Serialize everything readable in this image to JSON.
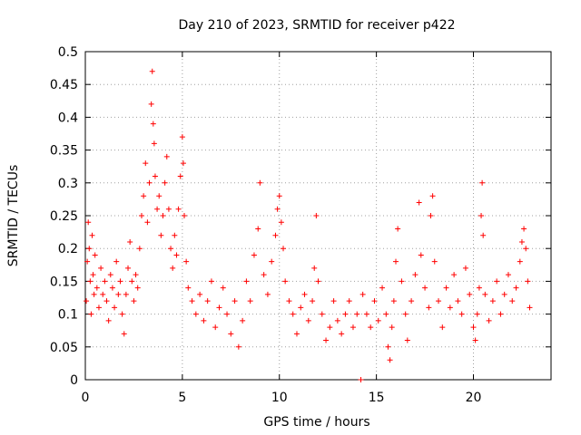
{
  "chart_data": {
    "type": "scatter",
    "title": "Day 210 of 2023, SRMTID for receiver p422",
    "xlabel": "GPS time / hours",
    "ylabel": "SRMTID / TECUs",
    "xlim": [
      0,
      24
    ],
    "ylim": [
      0,
      0.5
    ],
    "xticks": [
      0,
      5,
      10,
      15,
      20
    ],
    "xtick_labels": [
      "0",
      "5",
      "10",
      "15",
      "20"
    ],
    "yticks": [
      0,
      0.05,
      0.1,
      0.15,
      0.2,
      0.25,
      0.3,
      0.35,
      0.4,
      0.45,
      0.5
    ],
    "ytick_labels": [
      "0",
      "0.05",
      "0.1",
      "0.15",
      "0.2",
      "0.25",
      "0.3",
      "0.35",
      "0.4",
      "0.45",
      "0.5"
    ],
    "grid": true,
    "marker": "+",
    "colors": {
      "series": "#ff0000",
      "grid": "#a0a0a0",
      "axis": "#000000"
    },
    "series": [
      {
        "name": "SRMTID",
        "points": [
          [
            0.05,
            0.12
          ],
          [
            0.1,
            0.18
          ],
          [
            0.15,
            0.24
          ],
          [
            0.2,
            0.2
          ],
          [
            0.25,
            0.15
          ],
          [
            0.3,
            0.1
          ],
          [
            0.35,
            0.22
          ],
          [
            0.4,
            0.16
          ],
          [
            0.45,
            0.13
          ],
          [
            0.5,
            0.19
          ],
          [
            0.6,
            0.14
          ],
          [
            0.7,
            0.11
          ],
          [
            0.8,
            0.17
          ],
          [
            0.9,
            0.13
          ],
          [
            1.0,
            0.15
          ],
          [
            1.1,
            0.12
          ],
          [
            1.2,
            0.09
          ],
          [
            1.3,
            0.16
          ],
          [
            1.4,
            0.14
          ],
          [
            1.5,
            0.11
          ],
          [
            1.6,
            0.18
          ],
          [
            1.7,
            0.13
          ],
          [
            1.8,
            0.15
          ],
          [
            1.9,
            0.1
          ],
          [
            2.0,
            0.07
          ],
          [
            2.1,
            0.13
          ],
          [
            2.2,
            0.17
          ],
          [
            2.3,
            0.21
          ],
          [
            2.4,
            0.15
          ],
          [
            2.5,
            0.12
          ],
          [
            2.6,
            0.16
          ],
          [
            2.7,
            0.14
          ],
          [
            2.8,
            0.2
          ],
          [
            2.9,
            0.25
          ],
          [
            3.0,
            0.28
          ],
          [
            3.1,
            0.33
          ],
          [
            3.2,
            0.24
          ],
          [
            3.3,
            0.3
          ],
          [
            3.4,
            0.42
          ],
          [
            3.45,
            0.47
          ],
          [
            3.5,
            0.39
          ],
          [
            3.55,
            0.36
          ],
          [
            3.6,
            0.31
          ],
          [
            3.7,
            0.26
          ],
          [
            3.8,
            0.28
          ],
          [
            3.9,
            0.22
          ],
          [
            4.0,
            0.25
          ],
          [
            4.1,
            0.3
          ],
          [
            4.2,
            0.34
          ],
          [
            4.3,
            0.26
          ],
          [
            4.4,
            0.2
          ],
          [
            4.5,
            0.17
          ],
          [
            4.6,
            0.22
          ],
          [
            4.7,
            0.19
          ],
          [
            4.8,
            0.26
          ],
          [
            4.9,
            0.31
          ],
          [
            5.0,
            0.37
          ],
          [
            5.05,
            0.33
          ],
          [
            5.1,
            0.25
          ],
          [
            5.2,
            0.18
          ],
          [
            5.3,
            0.14
          ],
          [
            5.5,
            0.12
          ],
          [
            5.7,
            0.1
          ],
          [
            5.9,
            0.13
          ],
          [
            6.1,
            0.09
          ],
          [
            6.3,
            0.12
          ],
          [
            6.5,
            0.15
          ],
          [
            6.7,
            0.08
          ],
          [
            6.9,
            0.11
          ],
          [
            7.1,
            0.14
          ],
          [
            7.3,
            0.1
          ],
          [
            7.5,
            0.07
          ],
          [
            7.7,
            0.12
          ],
          [
            7.9,
            0.05
          ],
          [
            8.1,
            0.09
          ],
          [
            8.3,
            0.15
          ],
          [
            8.5,
            0.12
          ],
          [
            8.7,
            0.19
          ],
          [
            8.9,
            0.23
          ],
          [
            9.0,
            0.3
          ],
          [
            9.2,
            0.16
          ],
          [
            9.4,
            0.13
          ],
          [
            9.6,
            0.18
          ],
          [
            9.8,
            0.22
          ],
          [
            9.9,
            0.26
          ],
          [
            10.0,
            0.28
          ],
          [
            10.1,
            0.24
          ],
          [
            10.2,
            0.2
          ],
          [
            10.3,
            0.15
          ],
          [
            10.5,
            0.12
          ],
          [
            10.7,
            0.1
          ],
          [
            10.9,
            0.07
          ],
          [
            11.1,
            0.11
          ],
          [
            11.3,
            0.13
          ],
          [
            11.5,
            0.09
          ],
          [
            11.7,
            0.12
          ],
          [
            11.8,
            0.17
          ],
          [
            11.9,
            0.25
          ],
          [
            12.0,
            0.15
          ],
          [
            12.2,
            0.1
          ],
          [
            12.4,
            0.06
          ],
          [
            12.6,
            0.08
          ],
          [
            12.8,
            0.12
          ],
          [
            13.0,
            0.09
          ],
          [
            13.2,
            0.07
          ],
          [
            13.4,
            0.1
          ],
          [
            13.6,
            0.12
          ],
          [
            13.8,
            0.08
          ],
          [
            14.0,
            0.1
          ],
          [
            14.2,
            0.0
          ],
          [
            14.3,
            0.13
          ],
          [
            14.5,
            0.1
          ],
          [
            14.7,
            0.08
          ],
          [
            14.9,
            0.12
          ],
          [
            15.1,
            0.09
          ],
          [
            15.3,
            0.14
          ],
          [
            15.5,
            0.1
          ],
          [
            15.6,
            0.05
          ],
          [
            15.7,
            0.03
          ],
          [
            15.8,
            0.08
          ],
          [
            15.9,
            0.12
          ],
          [
            16.0,
            0.18
          ],
          [
            16.1,
            0.23
          ],
          [
            16.3,
            0.15
          ],
          [
            16.5,
            0.1
          ],
          [
            16.6,
            0.06
          ],
          [
            16.8,
            0.12
          ],
          [
            17.0,
            0.16
          ],
          [
            17.2,
            0.27
          ],
          [
            17.3,
            0.19
          ],
          [
            17.5,
            0.14
          ],
          [
            17.7,
            0.11
          ],
          [
            17.8,
            0.25
          ],
          [
            17.9,
            0.28
          ],
          [
            18.0,
            0.18
          ],
          [
            18.2,
            0.12
          ],
          [
            18.4,
            0.08
          ],
          [
            18.6,
            0.14
          ],
          [
            18.8,
            0.11
          ],
          [
            19.0,
            0.16
          ],
          [
            19.2,
            0.12
          ],
          [
            19.4,
            0.1
          ],
          [
            19.6,
            0.17
          ],
          [
            19.8,
            0.13
          ],
          [
            20.0,
            0.08
          ],
          [
            20.1,
            0.06
          ],
          [
            20.2,
            0.1
          ],
          [
            20.3,
            0.14
          ],
          [
            20.4,
            0.25
          ],
          [
            20.45,
            0.3
          ],
          [
            20.5,
            0.22
          ],
          [
            20.6,
            0.13
          ],
          [
            20.8,
            0.09
          ],
          [
            21.0,
            0.12
          ],
          [
            21.2,
            0.15
          ],
          [
            21.4,
            0.1
          ],
          [
            21.6,
            0.13
          ],
          [
            21.8,
            0.16
          ],
          [
            22.0,
            0.12
          ],
          [
            22.2,
            0.14
          ],
          [
            22.4,
            0.18
          ],
          [
            22.5,
            0.21
          ],
          [
            22.6,
            0.23
          ],
          [
            22.7,
            0.2
          ],
          [
            22.8,
            0.15
          ],
          [
            22.9,
            0.11
          ]
        ]
      }
    ]
  }
}
